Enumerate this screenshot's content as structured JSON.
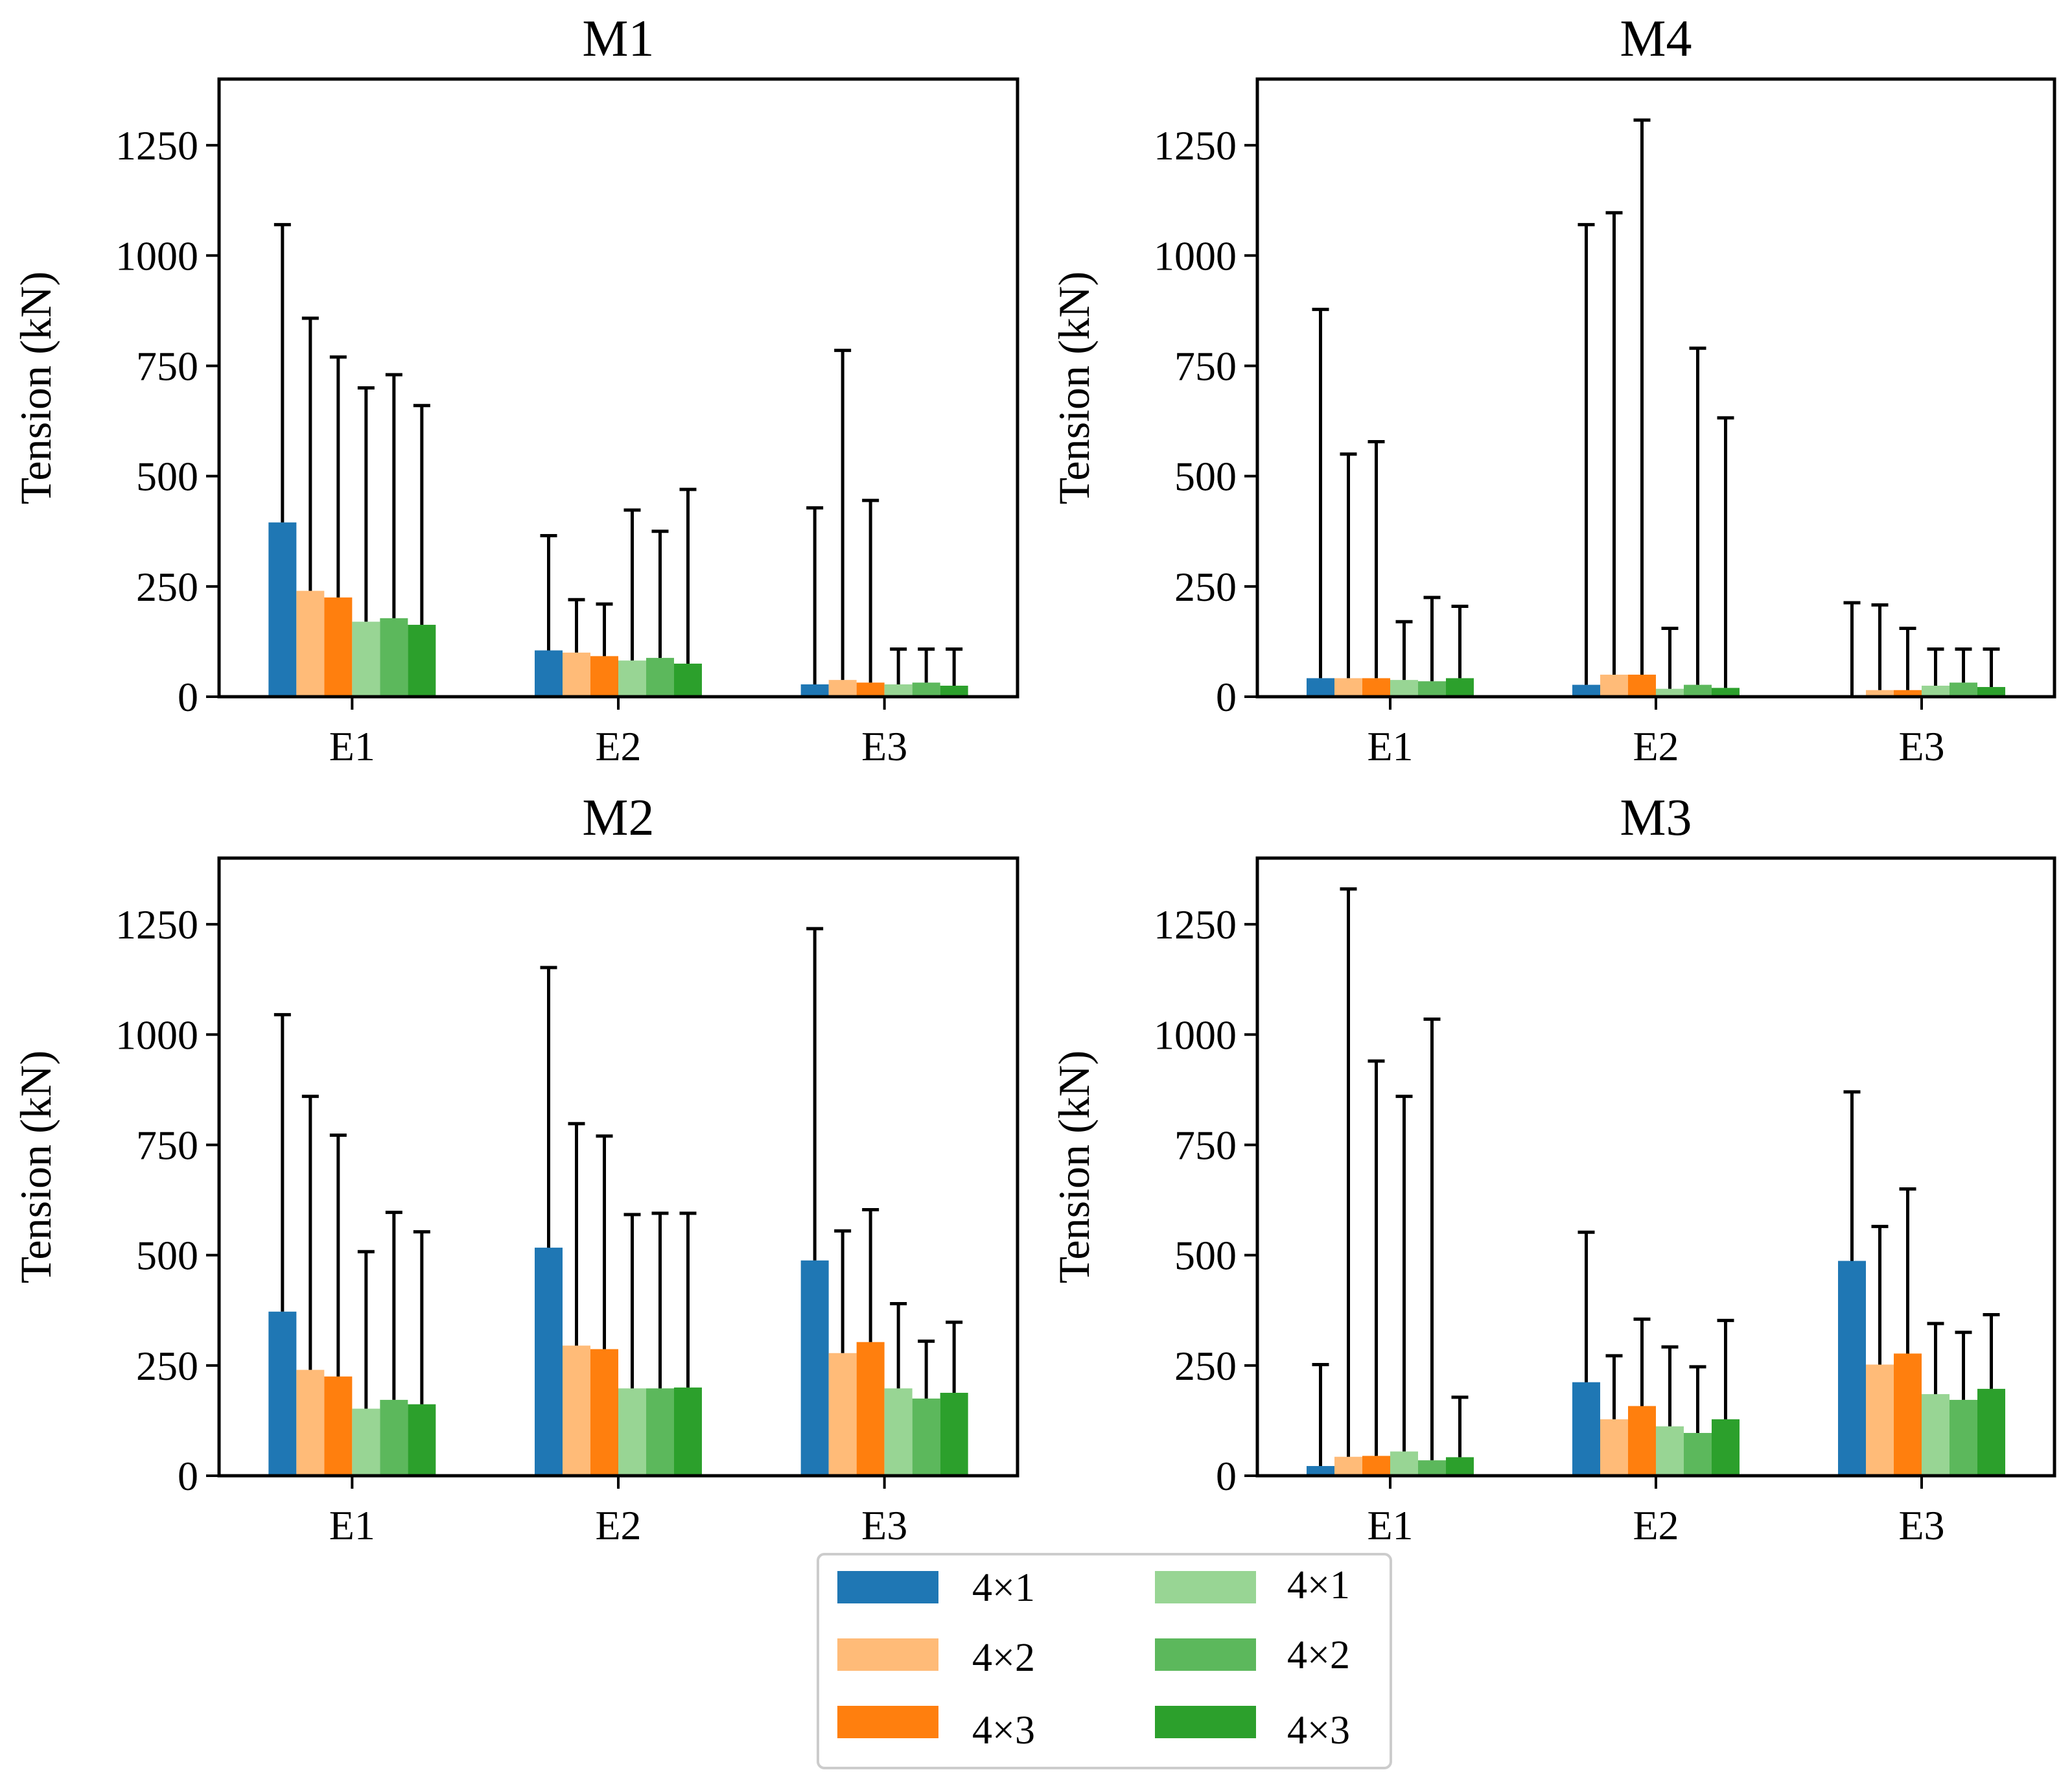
{
  "chart_data": [
    {
      "type": "bar",
      "title": "M1",
      "ylabel": "Tension (kN)",
      "xlabel": "",
      "ylim": [
        0,
        1400
      ],
      "yticks": [
        0,
        250,
        500,
        750,
        1000,
        1250
      ],
      "categories": [
        "E1",
        "E2",
        "E3"
      ],
      "series": [
        {
          "name": "4×1",
          "values": [
            395,
            105,
            28
          ],
          "errors": [
            1070,
            365,
            428
          ]
        },
        {
          "name": "4×2",
          "values": [
            240,
            100,
            38
          ],
          "errors": [
            858,
            220,
            785
          ]
        },
        {
          "name": "4×3",
          "values": [
            225,
            92,
            32
          ],
          "errors": [
            770,
            210,
            445
          ]
        },
        {
          "name": "4×1",
          "values": [
            170,
            82,
            28
          ],
          "errors": [
            700,
            423,
            108
          ]
        },
        {
          "name": "4×2",
          "values": [
            178,
            88,
            32
          ],
          "errors": [
            730,
            375,
            108
          ]
        },
        {
          "name": "4×3",
          "values": [
            163,
            75,
            25
          ],
          "errors": [
            660,
            470,
            108
          ]
        }
      ]
    },
    {
      "type": "bar",
      "title": "M4",
      "ylabel": "Tension (kN)",
      "xlabel": "",
      "ylim": [
        0,
        1400
      ],
      "yticks": [
        0,
        250,
        500,
        750,
        1000,
        1250
      ],
      "categories": [
        "E1",
        "E2",
        "E3"
      ],
      "series": [
        {
          "name": "4×1",
          "values": [
            42,
            27,
            2
          ],
          "errors": [
            878,
            1070,
            213
          ]
        },
        {
          "name": "4×2",
          "values": [
            42,
            50,
            15
          ],
          "errors": [
            550,
            1097,
            208
          ]
        },
        {
          "name": "4×3",
          "values": [
            42,
            50,
            15
          ],
          "errors": [
            578,
            1307,
            155
          ]
        },
        {
          "name": "4×1",
          "values": [
            38,
            18,
            25
          ],
          "errors": [
            170,
            155,
            108
          ]
        },
        {
          "name": "4×2",
          "values": [
            35,
            27,
            32
          ],
          "errors": [
            225,
            790,
            108
          ]
        },
        {
          "name": "4×3",
          "values": [
            42,
            20,
            22
          ],
          "errors": [
            205,
            632,
            108
          ]
        }
      ]
    },
    {
      "type": "bar",
      "title": "M2",
      "ylabel": "Tension (kN)",
      "xlabel": "",
      "ylim": [
        0,
        1400
      ],
      "yticks": [
        0,
        250,
        500,
        750,
        1000,
        1250
      ],
      "categories": [
        "E1",
        "E2",
        "E3"
      ],
      "series": [
        {
          "name": "4×1",
          "values": [
            372,
            517,
            488
          ],
          "errors": [
            1045,
            1152,
            1240
          ]
        },
        {
          "name": "4×2",
          "values": [
            240,
            295,
            278
          ],
          "errors": [
            860,
            798,
            555
          ]
        },
        {
          "name": "4×3",
          "values": [
            225,
            287,
            303
          ],
          "errors": [
            772,
            770,
            603
          ]
        },
        {
          "name": "4×1",
          "values": [
            152,
            198,
            198
          ],
          "errors": [
            508,
            592,
            390
          ]
        },
        {
          "name": "4×2",
          "values": [
            172,
            198,
            175
          ],
          "errors": [
            597,
            595,
            305
          ]
        },
        {
          "name": "4×3",
          "values": [
            162,
            200,
            188
          ],
          "errors": [
            553,
            595,
            348
          ]
        }
      ]
    },
    {
      "type": "bar",
      "title": "M3",
      "ylabel": "Tension (kN)",
      "xlabel": "",
      "ylim": [
        0,
        1400
      ],
      "yticks": [
        0,
        250,
        500,
        750,
        1000,
        1250
      ],
      "categories": [
        "E1",
        "E2",
        "E3"
      ],
      "series": [
        {
          "name": "4×1",
          "values": [
            22,
            212,
            487
          ],
          "errors": [
            252,
            552,
            870
          ]
        },
        {
          "name": "4×2",
          "values": [
            43,
            128,
            252
          ],
          "errors": [
            1330,
            272,
            565
          ]
        },
        {
          "name": "4×3",
          "values": [
            45,
            158,
            277
          ],
          "errors": [
            940,
            355,
            650
          ]
        },
        {
          "name": "4×1",
          "values": [
            55,
            112,
            185
          ],
          "errors": [
            860,
            292,
            345
          ]
        },
        {
          "name": "4×2",
          "values": [
            35,
            97,
            172
          ],
          "errors": [
            1035,
            247,
            325
          ]
        },
        {
          "name": "4×3",
          "values": [
            42,
            128,
            197
          ],
          "errors": [
            178,
            352,
            365
          ]
        }
      ]
    }
  ],
  "legend": {
    "placement": "bottom-center",
    "entries": [
      {
        "label": "4×1",
        "color": "#1f77b4"
      },
      {
        "label": "4×2",
        "color": "#ffbb78"
      },
      {
        "label": "4×3",
        "color": "#ff7f0e"
      },
      {
        "label": "4×1",
        "color": "#98d594"
      },
      {
        "label": "4×2",
        "color": "#5cb85c"
      },
      {
        "label": "4×3",
        "color": "#2ca02c"
      }
    ]
  },
  "colors": [
    "#1f77b4",
    "#ffbb78",
    "#ff7f0e",
    "#98d594",
    "#5cb85c",
    "#2ca02c"
  ],
  "error_color": "#000000"
}
